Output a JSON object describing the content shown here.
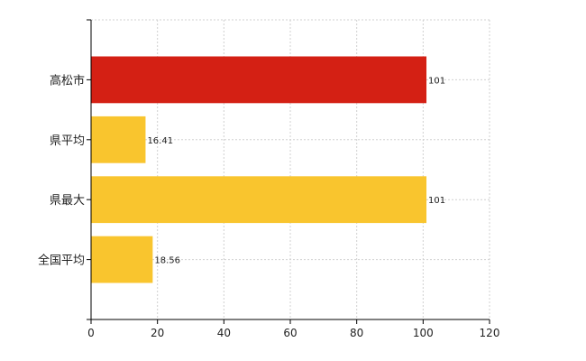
{
  "chart_data": {
    "type": "bar",
    "orientation": "horizontal",
    "categories": [
      "高松市",
      "県平均",
      "県最大",
      "全国平均"
    ],
    "values": [
      101,
      16.41,
      101,
      18.56
    ],
    "value_labels": [
      "101",
      "16.41",
      "101",
      "18.56"
    ],
    "bar_colors": [
      "#d42014",
      "#f9c52e",
      "#f9c52e",
      "#f9c52e"
    ],
    "xlim": [
      0,
      120
    ],
    "xticks": [
      0,
      20,
      40,
      60,
      80,
      100,
      120
    ],
    "xtick_labels": [
      "0",
      "20",
      "40",
      "60",
      "80",
      "100",
      "120"
    ],
    "title": "",
    "xlabel": "",
    "ylabel": "",
    "grid": true,
    "legend": "none"
  }
}
